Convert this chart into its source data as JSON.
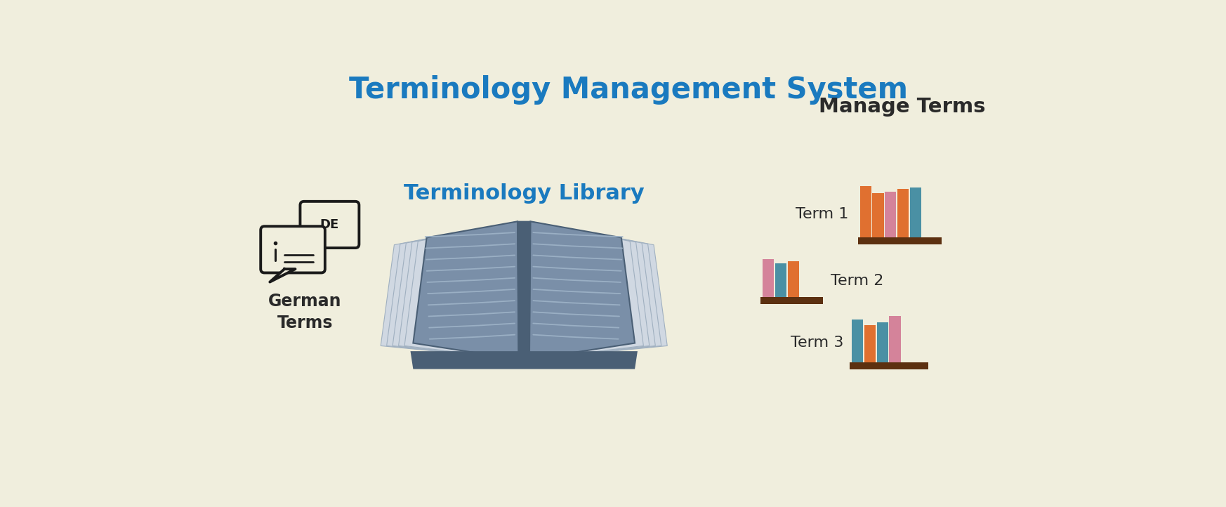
{
  "title": "Terminology Management System",
  "title_color": "#1a7abf",
  "title_fontsize": 30,
  "title_fontweight": "bold",
  "background_color": "#f0eedd",
  "lib_label": "Terminology Library",
  "lib_label_color": "#1a7abf",
  "lib_label_fontsize": 22,
  "manage_label": "Manage Terms",
  "manage_label_fontsize": 21,
  "manage_label_color": "#2a2a2a",
  "german_label": "German\nTerms",
  "german_label_fontsize": 17,
  "german_label_color": "#2a2a2a",
  "term_labels": [
    "Term 1",
    "Term 2",
    "Term 3"
  ],
  "term_label_fontsize": 16,
  "term_label_color": "#2a2a2a",
  "shelf_color": "#5c3010",
  "open_book_main": "#7a8fa8",
  "open_book_dark": "#4a5f75",
  "open_book_light": "#c8d4e0",
  "open_book_lines": "#9aafc4",
  "icon_color": "#1a1a1a"
}
